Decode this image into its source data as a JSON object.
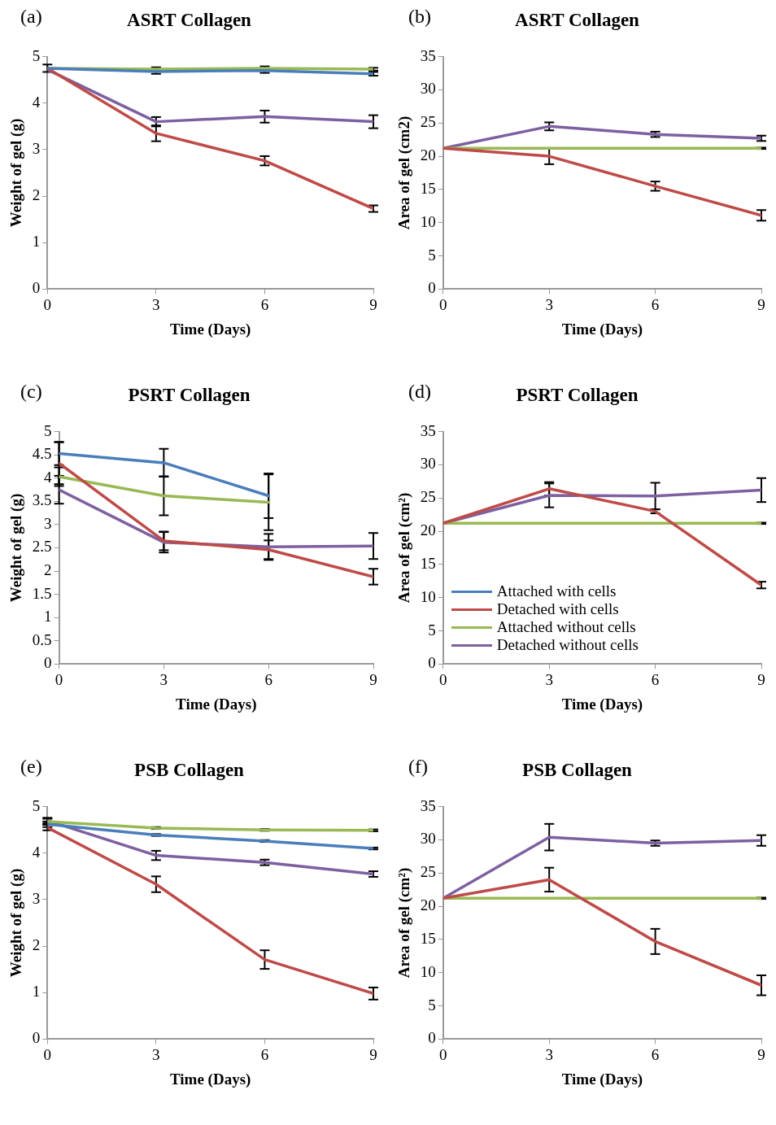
{
  "chart_data": [
    {
      "type": "line",
      "title": "ASRT Collagen",
      "xlabel": "Time (Days)",
      "ylabel": "Weight of gel (g)",
      "annotations": [
        "(a)"
      ],
      "x": [
        0,
        3,
        6,
        9
      ],
      "xlim": [
        0,
        9
      ],
      "xticks": [
        0,
        3,
        6,
        9
      ],
      "ylim": [
        0,
        5
      ],
      "yticks": [
        0,
        1,
        2,
        3,
        4,
        5
      ],
      "grid": false,
      "legend": false,
      "marker": "none",
      "series": [
        {
          "color": "#4a7ebb",
          "values": [
            4.75,
            4.68,
            4.7,
            4.63
          ],
          "errors": [
            null,
            0.05,
            0.05,
            0.04
          ]
        },
        {
          "color": "#be4b48",
          "values": [
            4.75,
            3.35,
            2.76,
            1.73
          ],
          "errors": [
            0.08,
            0.17,
            0.1,
            0.07
          ]
        },
        {
          "color": "#98b954",
          "values": [
            4.75,
            4.73,
            4.75,
            4.73
          ],
          "errors": [
            null,
            0.04,
            0.04,
            0.03
          ]
        },
        {
          "color": "#7d60a0",
          "values": [
            4.72,
            3.6,
            3.71,
            3.6
          ],
          "errors": [
            null,
            0.1,
            0.13,
            0.14
          ]
        }
      ]
    },
    {
      "type": "line",
      "title": "ASRT Collagen",
      "xlabel": "Time (Days)",
      "ylabel": "Area of gel (cm2)",
      "annotations": [
        "(b)"
      ],
      "x": [
        0,
        3,
        6,
        9
      ],
      "xlim": [
        0,
        9
      ],
      "xticks": [
        0,
        3,
        6,
        9
      ],
      "ylim": [
        0,
        35
      ],
      "yticks": [
        0,
        5,
        10,
        15,
        20,
        25,
        30,
        35
      ],
      "grid": false,
      "legend": false,
      "marker": "none",
      "series": [
        {
          "color": "#be4b48",
          "values": [
            21.2,
            20.0,
            15.5,
            11.1
          ],
          "errors": [
            null,
            1.2,
            0.7,
            0.8
          ]
        },
        {
          "color": "#98b954",
          "values": [
            21.2,
            21.2,
            21.2,
            21.2
          ],
          "errors": [
            null,
            null,
            null,
            0.1
          ]
        },
        {
          "color": "#7d60a0",
          "values": [
            21.2,
            24.5,
            23.3,
            22.7
          ],
          "errors": [
            null,
            0.6,
            0.4,
            0.4
          ]
        }
      ]
    },
    {
      "type": "line",
      "title": "PSRT Collagen",
      "xlabel": "Time (Days)",
      "ylabel": "Weight of gel (g)",
      "annotations": [
        "(c)"
      ],
      "x": [
        0,
        3,
        6,
        9
      ],
      "xlim": [
        0,
        9
      ],
      "xticks": [
        0,
        3,
        6,
        9
      ],
      "ylim": [
        0,
        5
      ],
      "yticks": [
        0,
        0.5,
        1,
        1.5,
        2,
        2.5,
        3,
        3.5,
        4,
        4.5,
        5
      ],
      "grid": false,
      "legend": false,
      "marker": "none",
      "series": [
        {
          "color": "#4a7ebb",
          "values": [
            4.53,
            4.33,
            3.62,
            null
          ],
          "errors": [
            0.25,
            0.3,
            0.48,
            null
          ]
        },
        {
          "color": "#be4b48",
          "values": [
            4.32,
            2.65,
            2.46,
            1.88
          ],
          "errors": [
            0.45,
            0.2,
            0.2,
            0.17
          ]
        },
        {
          "color": "#98b954",
          "values": [
            4.03,
            3.62,
            3.48,
            null
          ],
          "errors": [
            0.2,
            0.42,
            0.6,
            null
          ]
        },
        {
          "color": "#7d60a0",
          "values": [
            3.75,
            2.62,
            2.52,
            2.54
          ],
          "errors": [
            0.3,
            0.22,
            0.28,
            0.28
          ]
        }
      ]
    },
    {
      "type": "line",
      "title": "PSRT Collagen",
      "xlabel": "Time (Days)",
      "ylabel": "Area of gel (cm²)",
      "annotations": [
        "(d)"
      ],
      "x": [
        0,
        3,
        6,
        9
      ],
      "xlim": [
        0,
        9
      ],
      "xticks": [
        0,
        3,
        6,
        9
      ],
      "ylim": [
        0,
        35
      ],
      "yticks": [
        0,
        5,
        10,
        15,
        20,
        25,
        30,
        35
      ],
      "grid": false,
      "legend": "bottom left",
      "marker": "none",
      "series": [
        {
          "name": "Attached with cells",
          "color": "#4a7ebb",
          "values": [
            null,
            null,
            null,
            null
          ]
        },
        {
          "name": "Detached with cells",
          "color": "#be4b48",
          "values": [
            21.2,
            26.4,
            23.0,
            11.9
          ],
          "errors": [
            null,
            1.0,
            0.3,
            0.5
          ]
        },
        {
          "name": "Attached without cells",
          "color": "#98b954",
          "values": [
            21.2,
            21.2,
            21.2,
            21.2
          ],
          "errors": [
            null,
            null,
            null,
            0.1
          ]
        },
        {
          "name": "Detached without cells",
          "color": "#7d60a0",
          "values": [
            21.2,
            25.4,
            25.3,
            26.2
          ],
          "errors": [
            null,
            1.8,
            2.0,
            1.8
          ]
        }
      ]
    },
    {
      "type": "line",
      "title": "PSB Collagen",
      "xlabel": "Time (Days)",
      "ylabel": "Weight of gel (g)",
      "annotations": [
        "(e)"
      ],
      "x": [
        0,
        3,
        6,
        9
      ],
      "xlim": [
        0,
        9
      ],
      "xticks": [
        0,
        3,
        6,
        9
      ],
      "ylim": [
        0,
        5
      ],
      "yticks": [
        0,
        1,
        2,
        3,
        4,
        5
      ],
      "grid": false,
      "legend": false,
      "marker": "none",
      "series": [
        {
          "color": "#4a7ebb",
          "values": [
            4.62,
            4.39,
            4.26,
            4.1
          ],
          "errors": [
            0.06,
            0.02,
            0.02,
            0.02
          ]
        },
        {
          "color": "#be4b48",
          "values": [
            4.55,
            3.33,
            1.71,
            0.98
          ],
          "errors": [
            0.06,
            0.17,
            0.2,
            0.13
          ]
        },
        {
          "color": "#98b954",
          "values": [
            4.68,
            4.54,
            4.5,
            4.49
          ],
          "errors": [
            0.06,
            0.02,
            0.02,
            0.02
          ]
        },
        {
          "color": "#7d60a0",
          "values": [
            4.7,
            3.95,
            3.8,
            3.55
          ],
          "errors": [
            0.06,
            0.1,
            0.06,
            0.06
          ]
        }
      ]
    },
    {
      "type": "line",
      "title": "PSB Collagen",
      "xlabel": "Time (Days)",
      "ylabel": "Area of gel (cm²)",
      "annotations": [
        "(f)"
      ],
      "x": [
        0,
        3,
        6,
        9
      ],
      "xlim": [
        0,
        9
      ],
      "xticks": [
        0,
        3,
        6,
        9
      ],
      "ylim": [
        0,
        35
      ],
      "yticks": [
        0,
        5,
        10,
        15,
        20,
        25,
        30,
        35
      ],
      "grid": false,
      "legend": false,
      "marker": "none",
      "series": [
        {
          "color": "#be4b48",
          "values": [
            21.2,
            24.0,
            14.7,
            8.1
          ],
          "errors": [
            null,
            1.8,
            1.9,
            1.5
          ]
        },
        {
          "color": "#98b954",
          "values": [
            21.2,
            21.2,
            21.2,
            21.2
          ],
          "errors": [
            null,
            null,
            null,
            0.1
          ]
        },
        {
          "color": "#7d60a0",
          "values": [
            21.2,
            30.4,
            29.5,
            29.9
          ],
          "errors": [
            null,
            2.0,
            0.4,
            0.8
          ]
        }
      ]
    }
  ]
}
